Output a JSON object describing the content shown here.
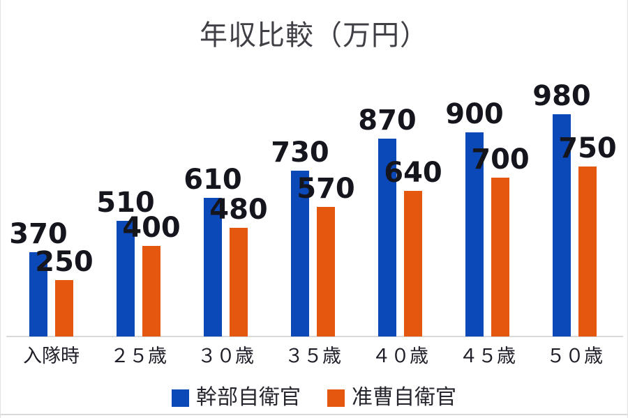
{
  "title": "年収比較（万円）",
  "chart_data": {
    "type": "bar",
    "title": "年収比較（万円）",
    "categories": [
      "入隊時",
      "２５歳",
      "３０歳",
      "３５歳",
      "４０歳",
      "４５歳",
      "５０歳"
    ],
    "series": [
      {
        "name": "幹部自衛官",
        "color": "#0c49b8",
        "values": [
          370,
          510,
          610,
          730,
          870,
          900,
          980
        ]
      },
      {
        "name": "准曹自衛官",
        "color": "#e4570e",
        "values": [
          250,
          400,
          480,
          570,
          640,
          700,
          750
        ]
      }
    ],
    "xlabel": "",
    "ylabel": "",
    "ylim": [
      0,
      1000
    ],
    "grid": false,
    "data_labels": true,
    "legend_position": "bottom"
  },
  "colors": {
    "series1": "#0c49b8",
    "series2": "#e4570e",
    "data_label": "#15151d",
    "axis_line": "#d9d9d9",
    "title_text": "#3f3f46",
    "background": "#ffffff"
  }
}
